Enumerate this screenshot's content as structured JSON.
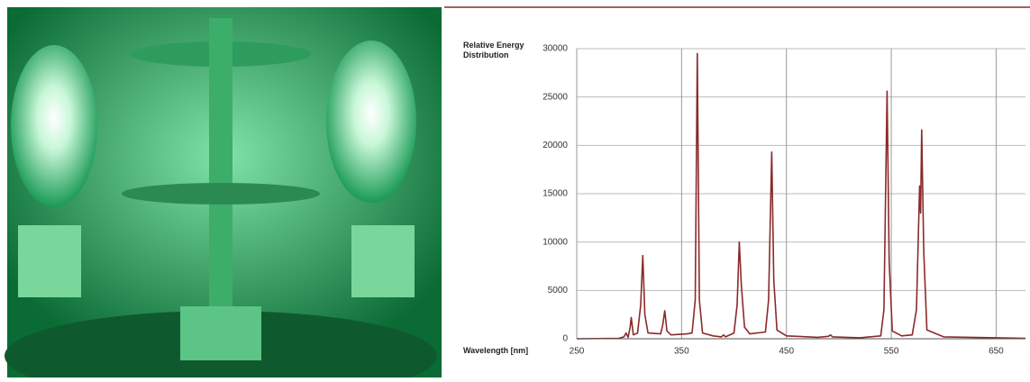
{
  "chart_data": {
    "type": "line",
    "ylabel": "Relative Energy Distribution",
    "xlabel": "Wavelength [nm]",
    "x": [
      250,
      290,
      295,
      297,
      299,
      301,
      302,
      304,
      308,
      311,
      313,
      315,
      318,
      330,
      332,
      334,
      336,
      340,
      355,
      360,
      363,
      365,
      367,
      370,
      380,
      388,
      390,
      392,
      400,
      403,
      405,
      407,
      410,
      415,
      430,
      433,
      436,
      438,
      441,
      450,
      480,
      490,
      492,
      494,
      520,
      540,
      543,
      546,
      548,
      551,
      560,
      570,
      574,
      577,
      578,
      579,
      581,
      584,
      600,
      650,
      678
    ],
    "values": [
      0,
      50,
      200,
      600,
      150,
      1200,
      2200,
      400,
      600,
      3500,
      8600,
      2500,
      600,
      500,
      1400,
      2900,
      800,
      400,
      500,
      600,
      4000,
      29500,
      4000,
      600,
      300,
      200,
      400,
      200,
      600,
      3500,
      10000,
      5500,
      1200,
      500,
      700,
      4000,
      19300,
      6000,
      900,
      300,
      150,
      250,
      400,
      200,
      100,
      300,
      3000,
      25600,
      8000,
      800,
      300,
      400,
      3000,
      15800,
      13000,
      21600,
      9000,
      900,
      200,
      100,
      50
    ],
    "color": "#8b2a2a",
    "xlim": [
      250,
      678
    ],
    "xticks": [
      250,
      350,
      450,
      550,
      650
    ],
    "ylim": [
      0,
      30000
    ],
    "yticks": [
      0,
      5000,
      10000,
      15000,
      20000,
      25000,
      30000
    ],
    "grid": true
  }
}
